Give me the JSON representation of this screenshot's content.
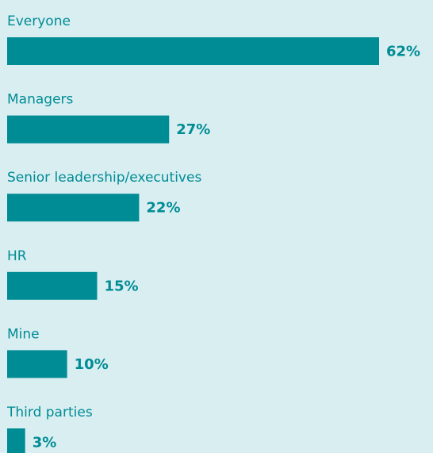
{
  "chart_data": {
    "type": "bar",
    "orientation": "horizontal",
    "categories": [
      "Everyone",
      "Managers",
      "Senior leadership/executives",
      "HR",
      "Mine",
      "Third parties"
    ],
    "values": [
      62,
      27,
      22,
      15,
      10,
      3
    ],
    "value_labels": [
      "62%",
      "27%",
      "22%",
      "15%",
      "10%",
      "3%"
    ],
    "color": "#008c95"
  }
}
